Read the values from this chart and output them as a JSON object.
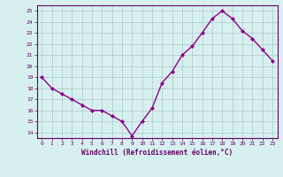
{
  "x": [
    0,
    1,
    2,
    3,
    4,
    5,
    6,
    7,
    8,
    9,
    10,
    11,
    12,
    13,
    14,
    15,
    16,
    17,
    18,
    19,
    20,
    21,
    22,
    23
  ],
  "y": [
    19.0,
    18.0,
    17.5,
    17.0,
    16.5,
    16.0,
    16.0,
    15.5,
    15.0,
    13.7,
    15.0,
    16.2,
    18.5,
    19.5,
    21.0,
    21.8,
    23.0,
    24.3,
    25.0,
    24.3,
    23.2,
    22.5,
    21.5,
    20.5
  ],
  "line_color": "#8B008B",
  "marker": "D",
  "marker_size": 2,
  "bg_color": "#d6f0f0",
  "grid_color": "#adc8c8",
  "xlabel": "Windchill (Refroidissement éolien,°C)",
  "ylabel_ticks": [
    14,
    15,
    16,
    17,
    18,
    19,
    20,
    21,
    22,
    23,
    24,
    25
  ],
  "ylim": [
    13.5,
    25.5
  ],
  "xlim": [
    -0.5,
    23.5
  ],
  "axis_label_color": "#660066",
  "tick_color": "#660066",
  "line_width": 1.0,
  "tick_fontsize": 4.5,
  "xlabel_fontsize": 5.5
}
